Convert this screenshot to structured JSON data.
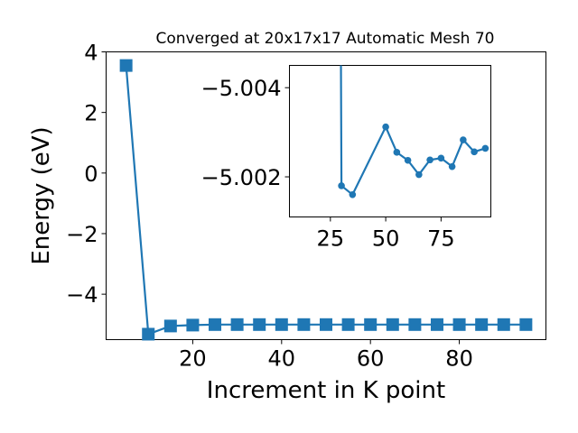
{
  "chart_data": [
    {
      "type": "line",
      "title": "Converged at 20x17x17 Automatic Mesh 70",
      "xlabel": "Increment in K point",
      "ylabel": "Energy (eV)",
      "marker": "square",
      "color": "#1f77b4",
      "xlim": [
        0.5,
        99.5
      ],
      "ylim": [
        -5.5,
        4.0
      ],
      "xticks": [
        20,
        40,
        60,
        80
      ],
      "yticks": [
        4,
        2,
        0,
        -2,
        -4
      ],
      "ytick_labels": [
        "4",
        "2",
        "0",
        "−2",
        "−4"
      ],
      "x": [
        5,
        10,
        15,
        20,
        25,
        30,
        35,
        40,
        45,
        50,
        55,
        60,
        65,
        70,
        75,
        80,
        85,
        90,
        95
      ],
      "y": [
        3.55,
        -5.32,
        -5.05,
        -5.02,
        -5.003,
        -5.003,
        -5.003,
        -5.003,
        -5.003,
        -5.003,
        -5.003,
        -5.003,
        -5.003,
        -5.003,
        -5.003,
        -5.003,
        -5.003,
        -5.003,
        -5.003
      ]
    },
    {
      "type": "line",
      "title": "",
      "marker": "circle",
      "color": "#1f77b4",
      "xlim": [
        6.5,
        97.5
      ],
      "ylim": [
        -5.0011,
        -5.0045
      ],
      "xticks": [
        25,
        50,
        75
      ],
      "yticks": [
        -5.004,
        -5.002
      ],
      "ytick_labels": [
        "−5.004",
        "−5.002"
      ],
      "x": [
        30,
        35,
        50,
        55,
        60,
        65,
        70,
        75,
        80,
        85,
        90,
        95
      ],
      "y": [
        -5.0018,
        -5.0016,
        -5.00312,
        -5.00255,
        -5.00237,
        -5.00205,
        -5.00238,
        -5.00242,
        -5.00223,
        -5.00283,
        -5.00256,
        -5.00264
      ],
      "offscreen_start": {
        "x": 25,
        "y": -5.06
      }
    }
  ]
}
